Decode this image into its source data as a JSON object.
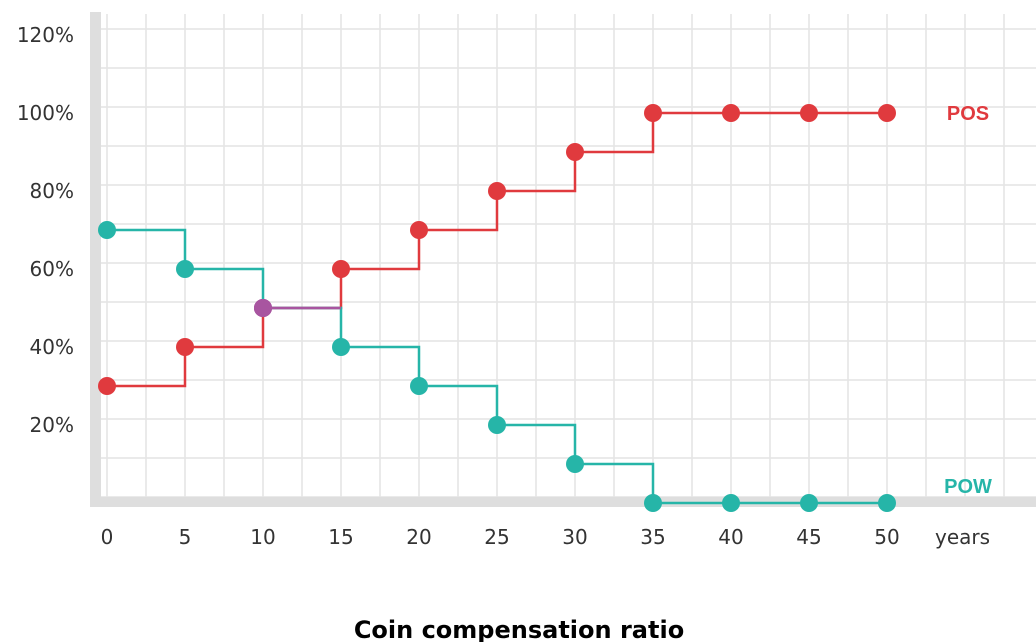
{
  "chart_data": {
    "type": "line",
    "step": true,
    "title": "Coin compensation ratio",
    "xlabel": "years",
    "ylabel": "",
    "x": [
      0,
      5,
      10,
      15,
      20,
      25,
      30,
      35,
      40,
      45,
      50
    ],
    "x_ticks": [
      "0",
      "5",
      "10",
      "15",
      "20",
      "25",
      "30",
      "35",
      "40",
      "45",
      "50"
    ],
    "y_ticks": [
      "20%",
      "40%",
      "60%",
      "80%",
      "100%",
      "120%"
    ],
    "xlim": [
      0,
      50
    ],
    "ylim": [
      0,
      120
    ],
    "grid": true,
    "series": [
      {
        "name": "POS",
        "color": "#e03a3e",
        "values": [
          30,
          40,
          50,
          60,
          70,
          80,
          90,
          100,
          100,
          100,
          100
        ]
      },
      {
        "name": "POW",
        "color": "#26b5a8",
        "values": [
          70,
          60,
          50,
          40,
          30,
          20,
          10,
          0,
          0,
          0,
          0
        ]
      }
    ],
    "intersection": {
      "x": 10,
      "y": 50,
      "color": "#a855a0"
    }
  }
}
